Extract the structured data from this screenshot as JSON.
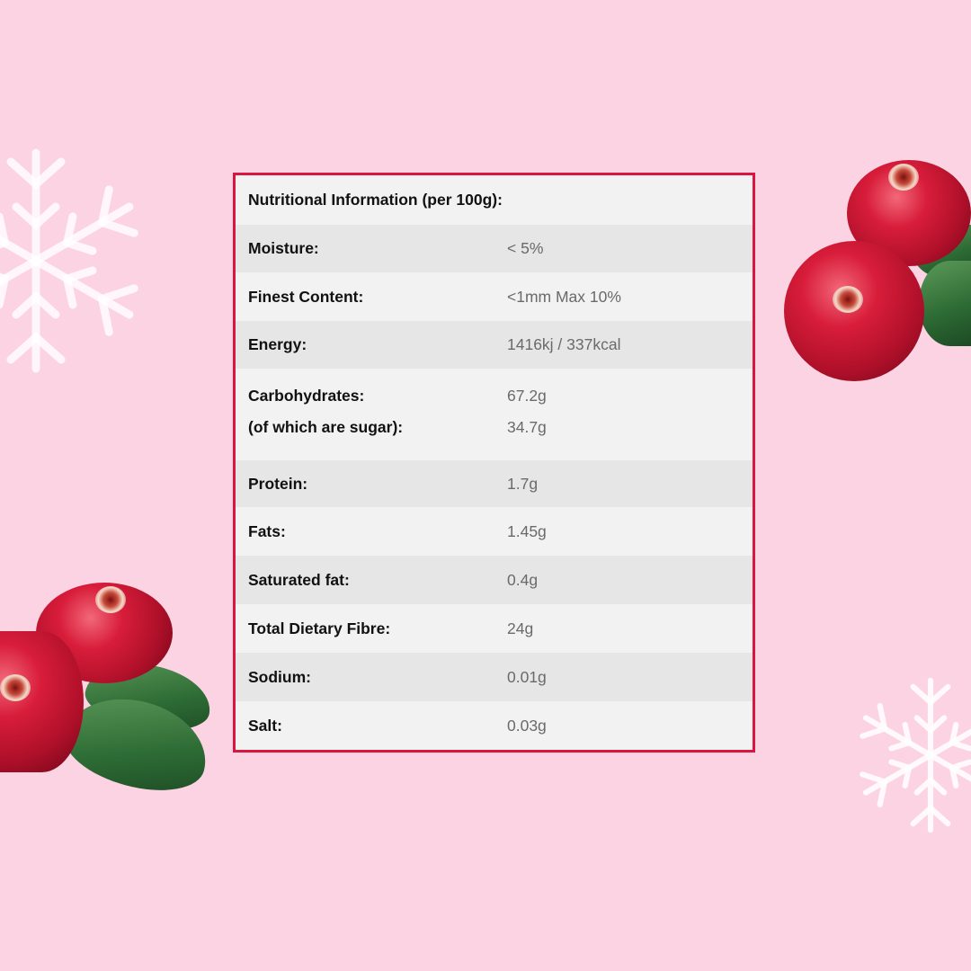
{
  "table": {
    "title": "Nutritional Information (per 100g):",
    "rows": [
      {
        "label": "Moisture:",
        "value": "< 5%"
      },
      {
        "label": "Finest Content:",
        "value": "<1mm Max 10%"
      },
      {
        "label": "Energy:",
        "value": "1416kj / 337kcal"
      },
      {
        "label": "Carbohydrates:",
        "value": "67.2g",
        "sub_label": "(of which are sugar):",
        "sub_value": "34.7g"
      },
      {
        "label": "Protein:",
        "value": "1.7g"
      },
      {
        "label": "Fats:",
        "value": "1.45g"
      },
      {
        "label": "Saturated fat:",
        "value": "0.4g"
      },
      {
        "label": "Total Dietary Fibre:",
        "value": "24g"
      },
      {
        "label": "Sodium:",
        "value": "0.01g"
      },
      {
        "label": "Salt:",
        "value": "0.03g"
      }
    ]
  },
  "colors": {
    "background": "#fbd3e3",
    "border": "#d9163f"
  },
  "decorations": [
    "snowflake-icon",
    "cranberry-image",
    "leaf-image"
  ]
}
